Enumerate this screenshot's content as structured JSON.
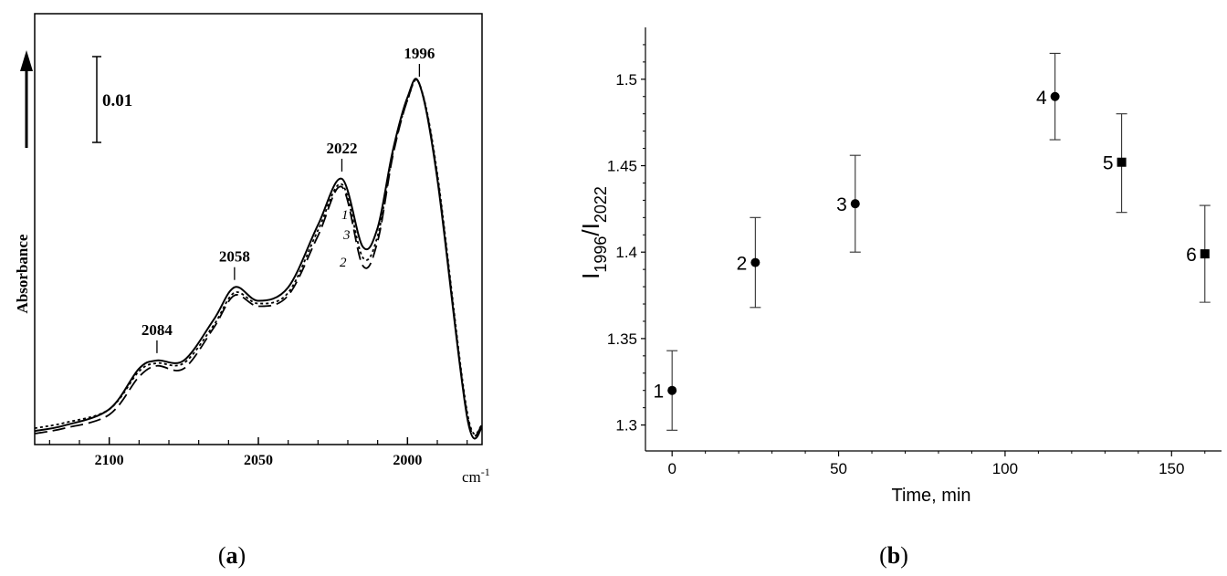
{
  "chart_data": [
    {
      "panel": "a",
      "type": "line",
      "panel_label": "(a)",
      "ylabel": "Absorbance",
      "x_unit_text": "cm-1",
      "x_reversed": true,
      "xlim": [
        2125,
        1975
      ],
      "x_ticks": [
        2100,
        2050,
        2000
      ],
      "scale_bar_label": "0.01",
      "peak_labels": [
        {
          "x": 2084,
          "label": "2084"
        },
        {
          "x": 2058,
          "label": "2058"
        },
        {
          "x": 2022,
          "label": "2022"
        },
        {
          "x": 1996,
          "label": "1996"
        }
      ],
      "curve_labels": [
        "1",
        "3",
        "2"
      ],
      "series": [
        {
          "name": "1",
          "style": "solid",
          "x": [
            2125,
            2115,
            2100,
            2090,
            2084,
            2075,
            2065,
            2058,
            2050,
            2040,
            2030,
            2022,
            2015,
            2010,
            2005,
            2000,
            1996,
            1990,
            1980,
            1975
          ],
          "y": [
            0.02,
            0.04,
            0.1,
            0.25,
            0.28,
            0.28,
            0.43,
            0.55,
            0.5,
            0.55,
            0.78,
            0.95,
            0.7,
            0.77,
            1.05,
            1.25,
            1.3,
            0.95,
            0.07,
            0.03
          ]
        },
        {
          "name": "2",
          "style": "dashed",
          "x": [
            2125,
            2115,
            2100,
            2090,
            2084,
            2075,
            2065,
            2058,
            2050,
            2040,
            2030,
            2022,
            2015,
            2010,
            2005,
            2000,
            1996,
            1990,
            1980,
            1975
          ],
          "y": [
            0.01,
            0.03,
            0.08,
            0.22,
            0.26,
            0.25,
            0.4,
            0.52,
            0.48,
            0.52,
            0.74,
            0.92,
            0.63,
            0.72,
            1.03,
            1.24,
            1.3,
            0.96,
            0.08,
            0.04
          ]
        },
        {
          "name": "3",
          "style": "dotted",
          "x": [
            2125,
            2115,
            2100,
            2090,
            2084,
            2075,
            2065,
            2058,
            2050,
            2040,
            2030,
            2022,
            2015,
            2010,
            2005,
            2000,
            1996,
            1990,
            1980,
            1975
          ],
          "y": [
            0.03,
            0.05,
            0.1,
            0.24,
            0.27,
            0.27,
            0.41,
            0.53,
            0.49,
            0.53,
            0.76,
            0.93,
            0.66,
            0.74,
            1.04,
            1.24,
            1.3,
            0.97,
            0.09,
            0.04
          ]
        }
      ]
    },
    {
      "panel": "b",
      "type": "scatter",
      "panel_label": "(b)",
      "xlabel": "Time, min",
      "ylabel": "I1996/I2022",
      "ylabel_parts": {
        "main1": "I",
        "sub1": "1996",
        "sep": "/I",
        "sub2": "2022"
      },
      "xlim": [
        -8,
        165
      ],
      "ylim": [
        1.285,
        1.53
      ],
      "x_ticks": [
        0,
        50,
        100,
        150
      ],
      "y_ticks": [
        1.3,
        1.35,
        1.4,
        1.45,
        1.5
      ],
      "y_tick_labels": [
        "1.3",
        "1.35",
        "1.4",
        "1.45",
        "1.5"
      ],
      "points": [
        {
          "label": "1",
          "x": 0,
          "y": 1.32,
          "err_low": 1.297,
          "err_high": 1.343,
          "marker": "circle"
        },
        {
          "label": "2",
          "x": 25,
          "y": 1.394,
          "err_low": 1.368,
          "err_high": 1.42,
          "marker": "circle"
        },
        {
          "label": "3",
          "x": 55,
          "y": 1.428,
          "err_low": 1.4,
          "err_high": 1.456,
          "marker": "circle"
        },
        {
          "label": "4",
          "x": 115,
          "y": 1.49,
          "err_low": 1.465,
          "err_high": 1.515,
          "marker": "circle"
        },
        {
          "label": "5",
          "x": 135,
          "y": 1.452,
          "err_low": 1.423,
          "err_high": 1.48,
          "marker": "square"
        },
        {
          "label": "6",
          "x": 160,
          "y": 1.399,
          "err_low": 1.371,
          "err_high": 1.427,
          "marker": "square"
        }
      ]
    }
  ]
}
